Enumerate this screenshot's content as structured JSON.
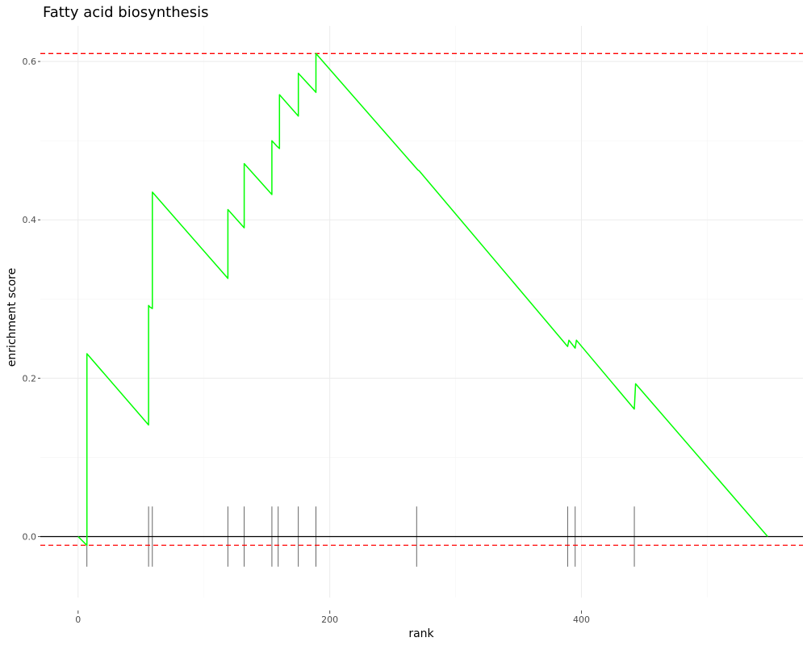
{
  "chart_data": {
    "type": "line",
    "title": "Fatty acid biosynthesis",
    "xlabel": "rank",
    "ylabel": "enrichment score",
    "xlim": [
      -30,
      576
    ],
    "ylim": [
      -0.077,
      0.645
    ],
    "x_ticks": [
      0,
      200,
      400
    ],
    "y_ticks": [
      0.0,
      0.2,
      0.4,
      0.6
    ],
    "x_tick_labels": [
      "0",
      "200",
      "400"
    ],
    "y_tick_labels": [
      "0.0",
      "0.2",
      "0.4",
      "0.6"
    ],
    "grid": true,
    "max_es": 0.61,
    "min_es": -0.011,
    "series": [
      {
        "color": "#00ff00",
        "x": [
          0,
          7,
          7,
          56,
          56,
          57,
          57,
          59,
          59,
          119,
          119,
          132,
          132,
          154,
          154,
          158,
          158,
          160,
          160,
          175,
          175,
          189,
          189,
          270,
          271,
          389,
          390,
          395,
          396,
          442,
          443,
          548
        ],
        "y": [
          0,
          -0.011,
          0.231,
          0.141,
          0.292,
          0.29,
          0.29,
          0.288,
          0.435,
          0.326,
          0.413,
          0.39,
          0.471,
          0.432,
          0.5,
          0.493,
          0.493,
          0.49,
          0.558,
          0.531,
          0.585,
          0.561,
          0.61,
          0.463,
          0.462,
          0.24,
          0.248,
          0.238,
          0.248,
          0.161,
          0.193,
          0
        ]
      }
    ],
    "hit_ranks": [
      7,
      56,
      59,
      119,
      132,
      154,
      159,
      175,
      189,
      269,
      389,
      395,
      442
    ]
  }
}
